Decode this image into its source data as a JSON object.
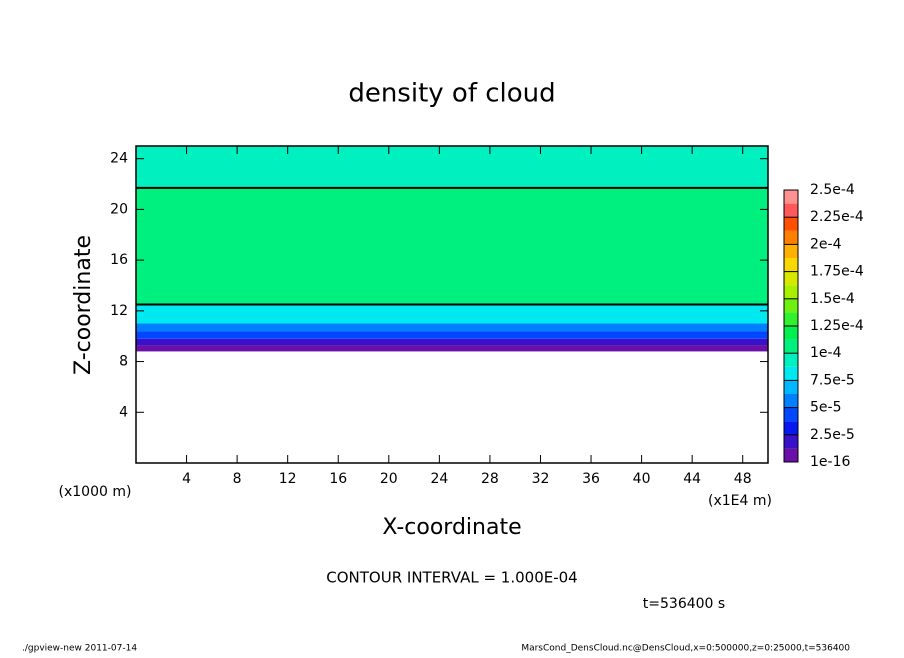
{
  "chart_data": {
    "type": "contour",
    "title": "density of cloud",
    "x_label": "X-coordinate",
    "y_label": "Z-coordinate",
    "y_unit_note": "(x1000 m)",
    "x_unit_note": "(x1E4 m)",
    "contour_note": "CONTOUR INTERVAL = 1.000E-04",
    "time_note": "t=536400 s",
    "footer_left": "./gpview-new  2011-07-14",
    "footer_right": "MarsCond_DensCloud.nc@DensCloud,x=0:500000,z=0:25000,t=536400",
    "xlim": [
      0,
      50
    ],
    "xticks": [
      4,
      8,
      12,
      16,
      20,
      24,
      28,
      32,
      36,
      40,
      44,
      48
    ],
    "ylim": [
      0,
      25
    ],
    "yticks": [
      4,
      8,
      12,
      16,
      20,
      24
    ],
    "contour_level": 0.0001,
    "profile": {
      "z_edges": [
        8.8,
        9.3,
        9.8,
        10.4,
        11,
        12.5,
        21.7,
        25
      ],
      "values": [
        1e-05,
        2e-05,
        4e-05,
        6e-05,
        8e-05,
        0.00011,
        9e-05
      ]
    },
    "colorbar": {
      "ticks": [
        {
          "value": 1e-16,
          "label": "1e-16"
        },
        {
          "value": 2.5e-05,
          "label": "2.5e-5"
        },
        {
          "value": 5e-05,
          "label": "5e-5"
        },
        {
          "value": 7.5e-05,
          "label": "7.5e-5"
        },
        {
          "value": 0.0001,
          "label": "1e-4"
        },
        {
          "value": 0.000125,
          "label": "1.25e-4"
        },
        {
          "value": 0.00015,
          "label": "1.5e-4"
        },
        {
          "value": 0.000175,
          "label": "1.75e-4"
        },
        {
          "value": 0.0002,
          "label": "2e-4"
        },
        {
          "value": 0.000225,
          "label": "2.25e-4"
        },
        {
          "value": 0.00025,
          "label": "2.5e-4"
        }
      ],
      "colors": [
        "#6a10a8",
        "#3a10c8",
        "#0818f0",
        "#0048ff",
        "#0080ff",
        "#00b8ff",
        "#00e8f0",
        "#00f0c0",
        "#00f080",
        "#00f050",
        "#30f030",
        "#70f010",
        "#a8f000",
        "#d8e800",
        "#f8d800",
        "#ffb000",
        "#ff8000",
        "#ff5000",
        "#ff5858",
        "#ff9090"
      ]
    }
  }
}
